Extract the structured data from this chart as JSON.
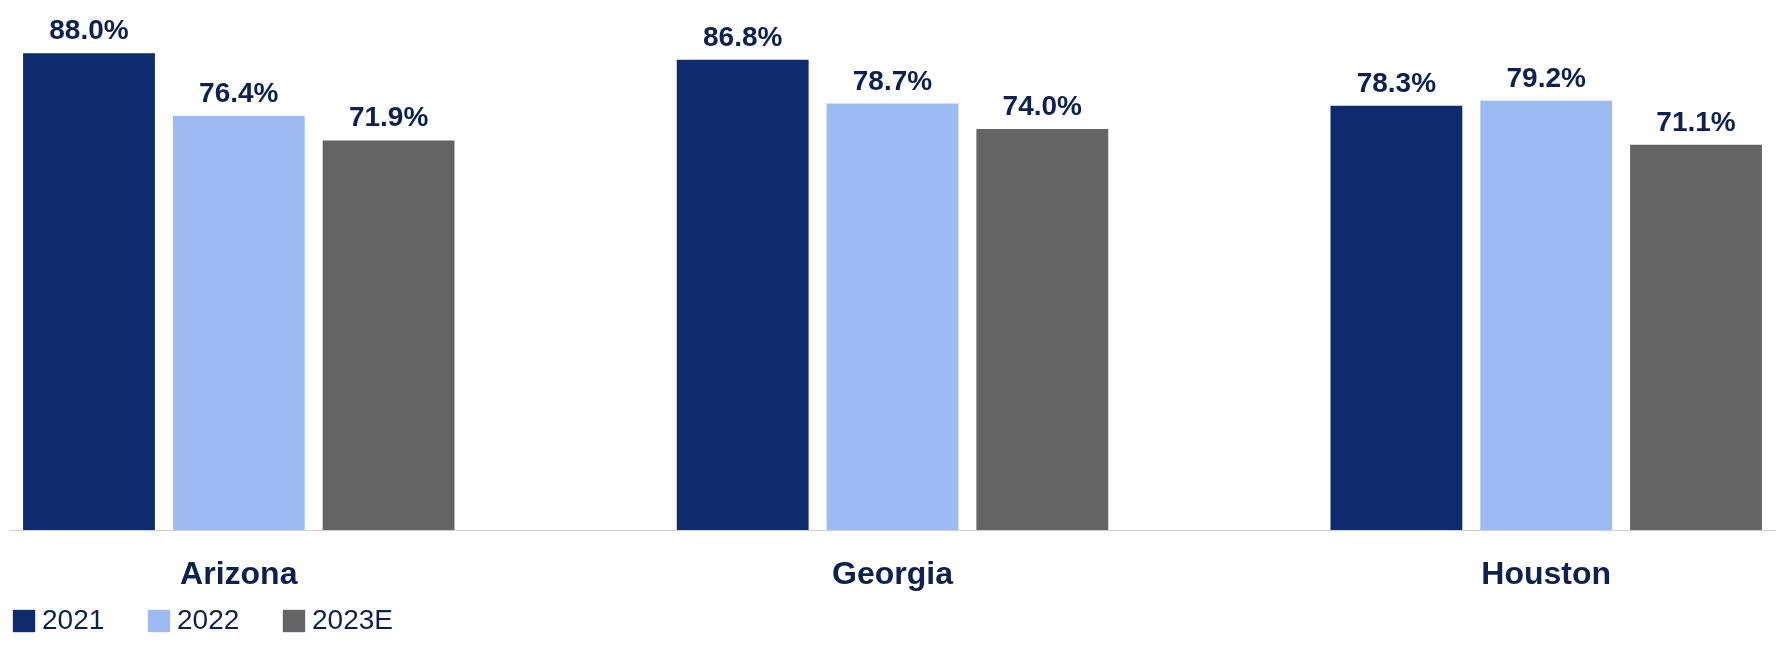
{
  "chart_data": {
    "type": "bar",
    "categories": [
      "Arizona",
      "Georgia",
      "Houston"
    ],
    "legend": "bottom",
    "grid": false,
    "series": [
      {
        "name": "2021",
        "color": "#0d2b6e",
        "values": [
          88.0,
          86.8,
          78.3
        ],
        "value_labels": [
          "88.0%",
          "86.8%",
          "78.3%"
        ]
      },
      {
        "name": "2022",
        "color": "#9dbaf2",
        "values": [
          76.4,
          78.7,
          79.2
        ],
        "value_labels": [
          "76.4%",
          "78.7%",
          "79.2%"
        ]
      },
      {
        "name": "2023E",
        "color": "#636466",
        "values": [
          71.9,
          74.0,
          71.1
        ],
        "value_labels": [
          "71.9%",
          "74.0%",
          "71.1%"
        ]
      }
    ]
  }
}
